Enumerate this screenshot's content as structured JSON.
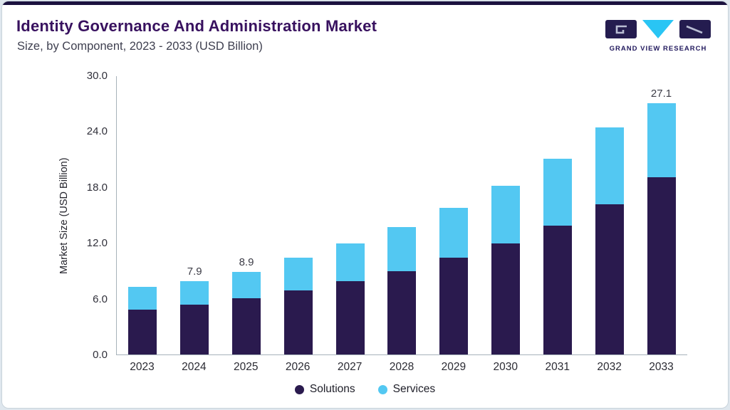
{
  "header": {
    "title": "Identity Governance And Administration Market",
    "subtitle": "Size, by Component, 2023 - 2033 (USD Billion)",
    "brand": "GRAND VIEW RESEARCH"
  },
  "chart_data": {
    "type": "bar",
    "stacked": true,
    "title": "Identity Governance And Administration Market Size, by Component, 2023 - 2033 (USD Billion)",
    "ylabel": "Market Size (USD Billion)",
    "ylim": [
      0,
      30
    ],
    "yticks": [
      "30.0",
      "24.0",
      "18.0",
      "12.0",
      "6.0",
      "0.0"
    ],
    "grid": false,
    "legend_position": "bottom",
    "categories": [
      "2023",
      "2024",
      "2025",
      "2026",
      "2027",
      "2028",
      "2029",
      "2030",
      "2031",
      "2032",
      "2033"
    ],
    "series": [
      {
        "name": "Solutions",
        "color": "#2a1a4e",
        "values": [
          4.8,
          5.4,
          6.1,
          6.9,
          7.9,
          9.0,
          10.4,
          12.0,
          13.9,
          16.2,
          19.1
        ]
      },
      {
        "name": "Services",
        "color": "#53c8f2",
        "values": [
          2.5,
          2.5,
          2.8,
          3.5,
          4.1,
          4.7,
          5.4,
          6.2,
          7.2,
          8.3,
          8.0
        ]
      }
    ],
    "totals": [
      7.3,
      7.9,
      8.9,
      10.4,
      12.0,
      13.7,
      15.8,
      18.2,
      21.1,
      24.5,
      27.1
    ],
    "bar_labels": [
      "",
      "7.9",
      "8.9",
      "",
      "",
      "",
      "",
      "",
      "",
      "",
      "27.1"
    ]
  },
  "legend": {
    "items": [
      {
        "label": "Solutions",
        "color": "#2a1a4e"
      },
      {
        "label": "Services",
        "color": "#53c8f2"
      }
    ]
  },
  "colors": {
    "accent_bar": "#1b123f",
    "title": "#38115f",
    "solutions": "#2a1a4e",
    "services": "#53c8f2",
    "logo_dark": "#241c4f",
    "logo_cyan": "#29c5f4"
  }
}
